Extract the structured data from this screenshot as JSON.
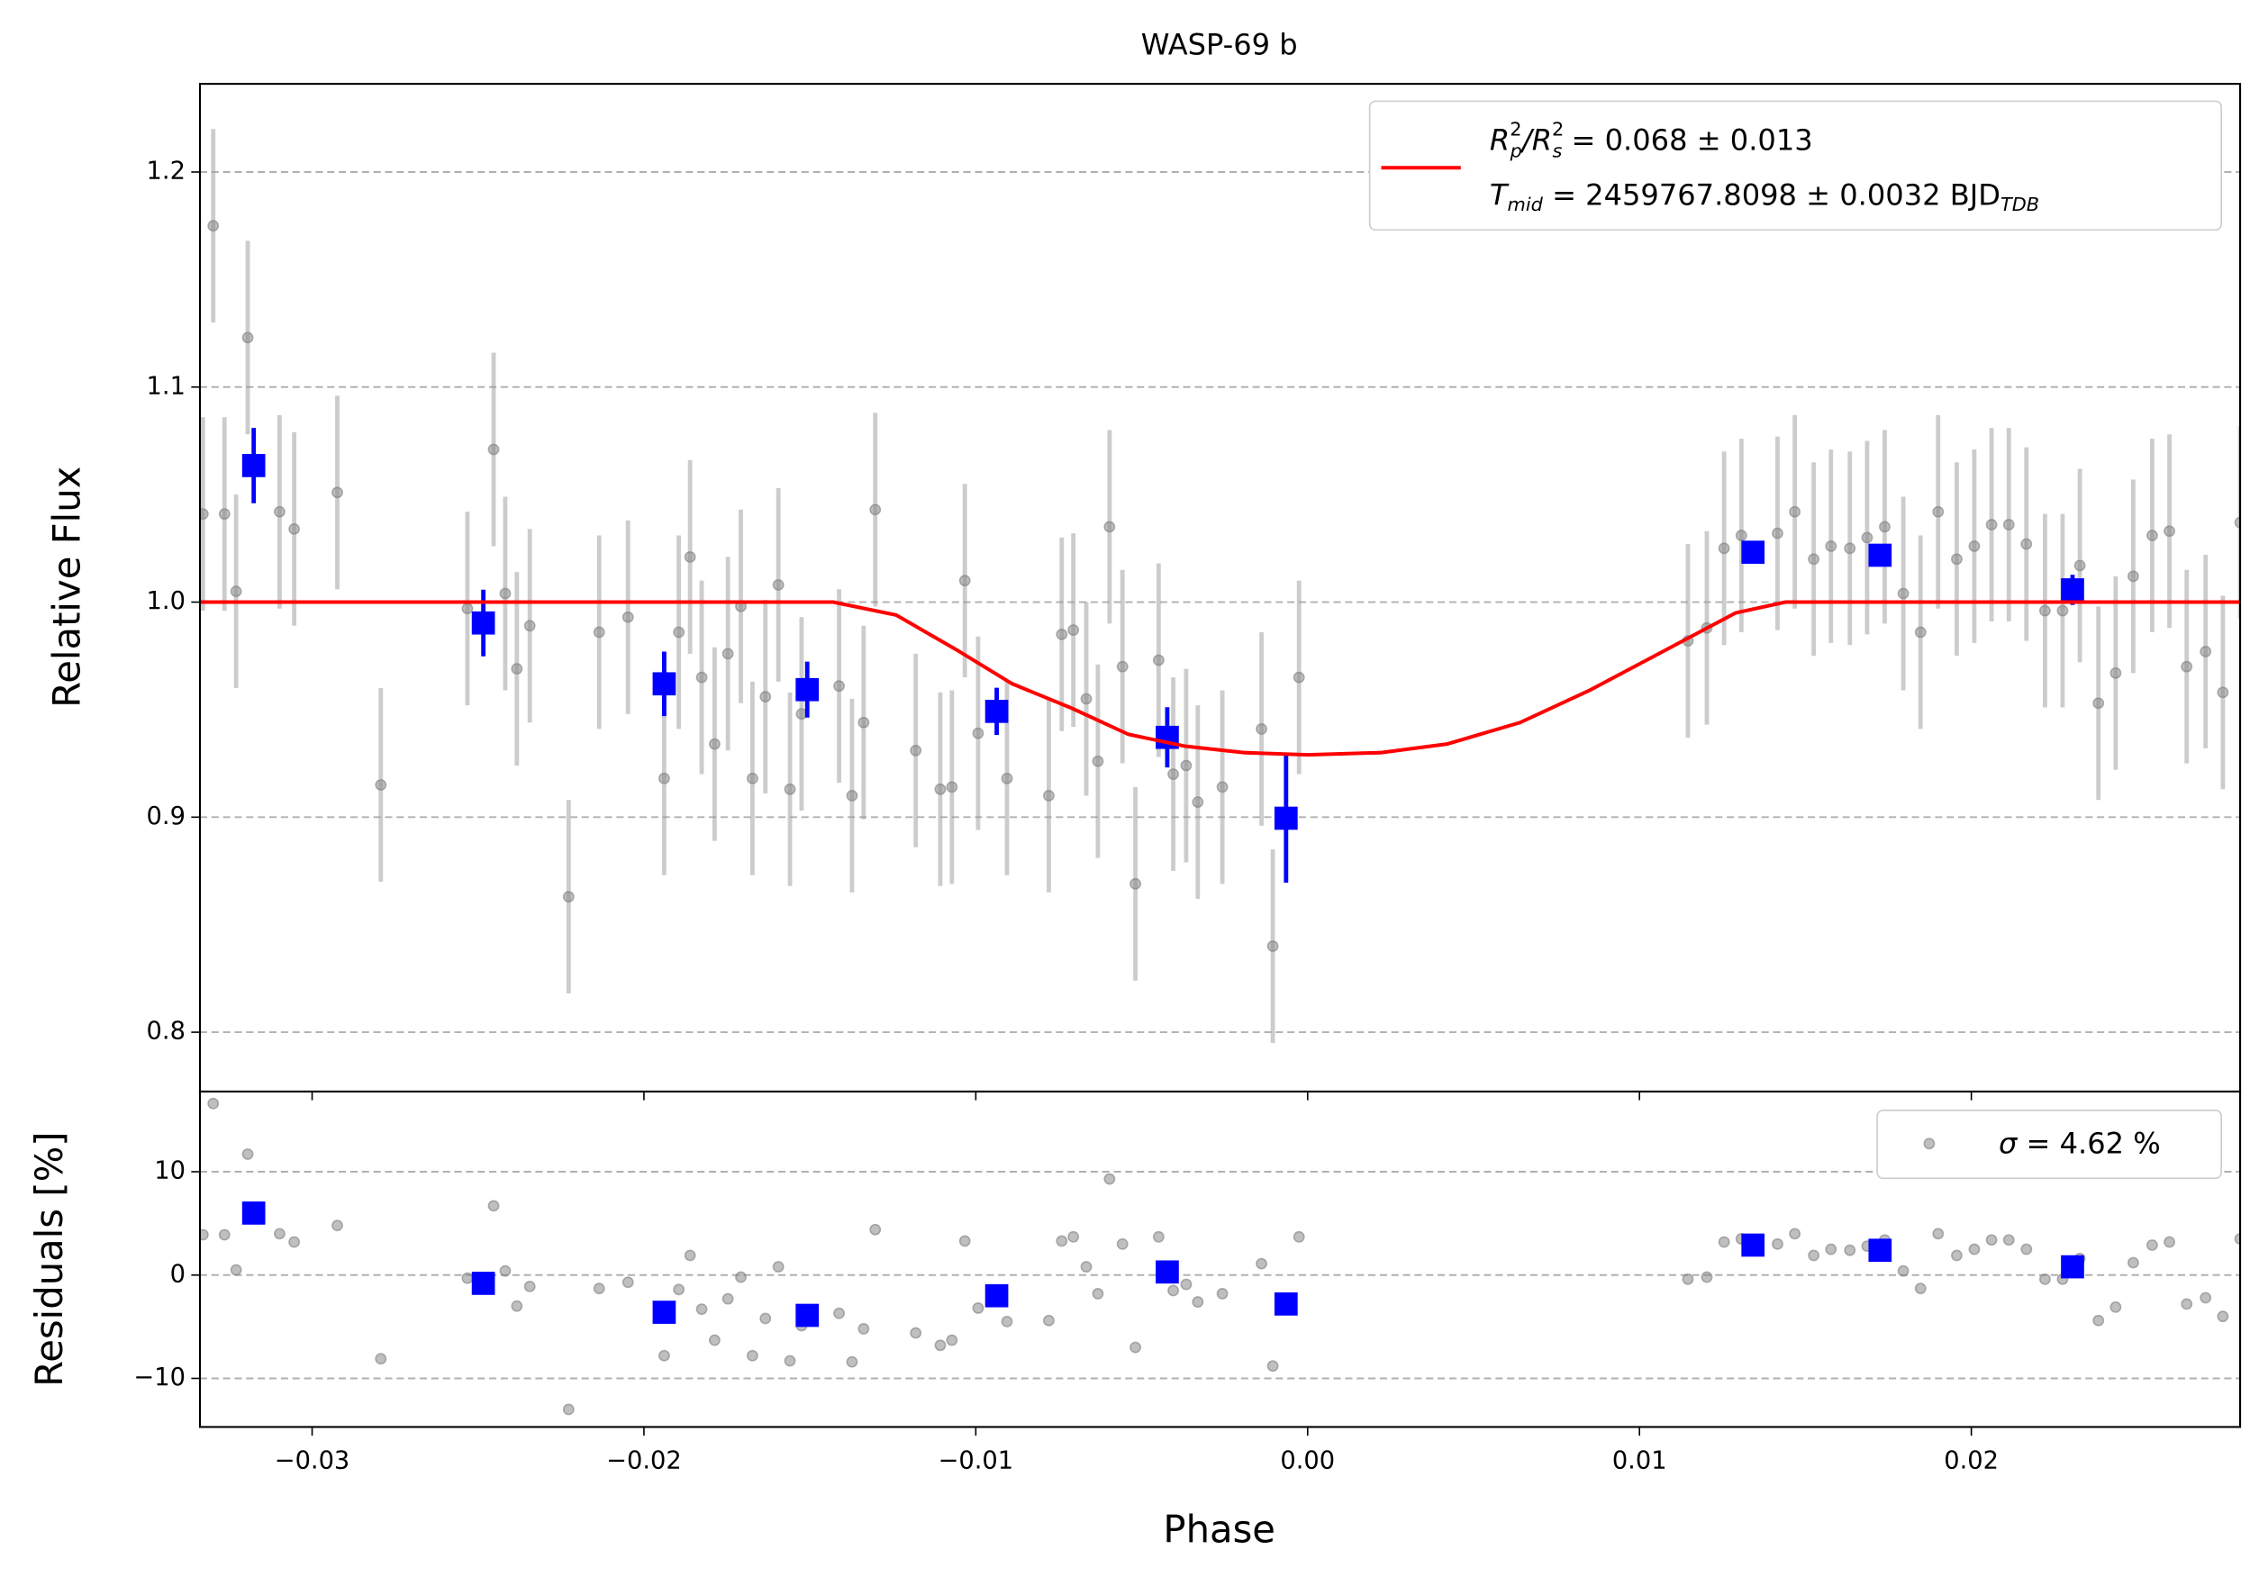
{
  "chart_data": [
    {
      "type": "scatter",
      "title": "WASP-69 b",
      "y_label": "Relative Flux",
      "xlim": [
        -0.03338,
        0.0281
      ],
      "ylim": [
        0.7724,
        1.241
      ],
      "yticks": [
        0.8,
        0.9,
        {
          "value": 1.0,
          "label": "1.0"
        },
        1.1,
        1.2
      ],
      "grid": true,
      "legend_loc": "upper right",
      "series": [
        {
          "kind": "errorbar",
          "color": "#808080",
          "x": [
            -0.03329,
            -0.03298,
            -0.03264,
            -0.03229,
            -0.03194,
            -0.03098,
            -0.03054,
            -0.02924,
            -0.02793,
            -0.02532,
            -0.02453,
            -0.02418,
            -0.02383,
            -0.02344,
            -0.02227,
            -0.02135,
            -0.02048,
            -0.01939,
            -0.01895,
            -0.01861,
            -0.01826,
            -0.01787,
            -0.01747,
            -0.01708,
            -0.01673,
            -0.01634,
            -0.01595,
            -0.0156,
            -0.01525,
            -0.01412,
            -0.01373,
            -0.01338,
            -0.01303,
            -0.01181,
            -0.01107,
            -0.01072,
            -0.01033,
            -0.00993,
            -0.00906,
            -0.0078,
            -0.00741,
            -0.00706,
            -0.00667,
            -0.00632,
            -0.00597,
            -0.00558,
            -0.00519,
            -0.00449,
            -0.00405,
            -0.00366,
            -0.00331,
            -0.00257,
            -0.00139,
            -0.00105,
            -0.00026,
            0.01146,
            0.01203,
            0.01255,
            0.01307,
            0.01416,
            0.01468,
            0.01525,
            0.01577,
            0.01634,
            0.01686,
            0.01739,
            0.01795,
            0.01847,
            0.019,
            0.01956,
            0.02009,
            0.02061,
            0.02113,
            0.02166,
            0.02222,
            0.02275,
            0.02327,
            0.02383,
            0.02435,
            0.02488,
            0.02545,
            0.02597,
            0.02649,
            0.02706,
            0.02758,
            0.0281
          ],
          "values": [
            1.041,
            1.175,
            1.041,
            1.005,
            1.123,
            1.042,
            1.034,
            1.051,
            0.915,
            0.997,
            1.071,
            1.004,
            0.969,
            0.989,
            0.863,
            0.986,
            0.993,
            0.918,
            0.986,
            1.021,
            0.965,
            0.934,
            0.976,
            0.998,
            0.918,
            0.956,
            1.008,
            0.913,
            0.948,
            0.961,
            0.91,
            0.944,
            1.043,
            0.931,
            0.913,
            0.914,
            1.01,
            0.939,
            0.918,
            0.91,
            0.985,
            0.987,
            0.955,
            0.926,
            1.035,
            0.97,
            0.869,
            0.973,
            0.92,
            0.924,
            0.907,
            0.914,
            0.941,
            0.84,
            0.965,
            0.982,
            0.988,
            1.025,
            1.031,
            1.032,
            1.042,
            1.02,
            1.026,
            1.025,
            1.03,
            1.035,
            1.004,
            0.986,
            1.042,
            1.02,
            1.026,
            1.036,
            1.036,
            1.027,
            0.996,
            0.996,
            1.017,
            0.953,
            0.967,
            1.012,
            1.031,
            1.033,
            0.97,
            0.977,
            0.958,
            1.037
          ],
          "errors": [
            0.045,
            0.045,
            0.045,
            0.045,
            0.045,
            0.045,
            0.045,
            0.045,
            0.045,
            0.045,
            0.045,
            0.045,
            0.045,
            0.045,
            0.045,
            0.045,
            0.045,
            0.045,
            0.045,
            0.045,
            0.045,
            0.045,
            0.045,
            0.045,
            0.045,
            0.045,
            0.045,
            0.045,
            0.045,
            0.045,
            0.045,
            0.045,
            0.045,
            0.045,
            0.045,
            0.045,
            0.045,
            0.045,
            0.045,
            0.045,
            0.045,
            0.045,
            0.045,
            0.045,
            0.045,
            0.045,
            0.045,
            0.045,
            0.045,
            0.045,
            0.045,
            0.045,
            0.045,
            0.045,
            0.045,
            0.045,
            0.045,
            0.045,
            0.045,
            0.045,
            0.045,
            0.045,
            0.045,
            0.045,
            0.045,
            0.045,
            0.045,
            0.045,
            0.045,
            0.045,
            0.045,
            0.045,
            0.045,
            0.045,
            0.045,
            0.045,
            0.045,
            0.045,
            0.045,
            0.045,
            0.045,
            0.045,
            0.045,
            0.045,
            0.045,
            0.045
          ]
        },
        {
          "kind": "binned",
          "color": "#0000ff",
          "x": [
            -0.03176,
            -0.02484,
            -0.01939,
            -0.01508,
            -0.00937,
            -0.00423,
            -0.00065,
            0.01342,
            0.01725,
            0.02305
          ],
          "values": [
            1.0635,
            0.9903,
            0.962,
            0.9593,
            0.9492,
            0.9371,
            0.8995,
            1.0232,
            1.0218,
            1.0057
          ],
          "errors": [
            0.0175,
            0.0155,
            0.015,
            0.013,
            0.011,
            0.014,
            0.03,
            0.005,
            0.005,
            0.007
          ]
        },
        {
          "kind": "line",
          "color": "#ff0000",
          "name": [
            "R",
            "2",
            "p",
            "/R",
            "2",
            "s",
            " = 0.068 ± 0.013"
          ],
          "name2": [
            "T",
            "mid",
            " = 2459767.8098 ± 0.0032 BJD",
            "TDB"
          ],
          "x": [
            -0.03338,
            -0.0143,
            -0.0124,
            -0.0106,
            -0.0089,
            -0.0071,
            -0.0054,
            -0.0037,
            -0.0019,
            0,
            0.0022,
            0.0042,
            0.0064,
            0.0085,
            0.0107,
            0.0129,
            0.0144,
            0.0281
          ],
          "values": [
            1,
            1,
            0.994,
            0.978,
            0.962,
            0.9506,
            0.9385,
            0.933,
            0.93,
            0.929,
            0.93,
            0.934,
            0.944,
            0.959,
            0.977,
            0.995,
            1,
            1
          ]
        }
      ]
    },
    {
      "type": "scatter",
      "x_label": "Phase",
      "y_label": "Residuals [%]",
      "xlim": [
        -0.03338,
        0.0281
      ],
      "ylim": [
        -14.7,
        17.76
      ],
      "xticks": [
        {
          "value": -0.03,
          "label": "−0.03"
        },
        {
          "value": -0.02,
          "label": "−0.02"
        },
        {
          "value": -0.01,
          "label": "−0.01"
        },
        {
          "value": 0,
          "label": "0.00"
        },
        0.01,
        0.02
      ],
      "yticks": [
        {
          "value": -10,
          "label": "−10"
        },
        0,
        10
      ],
      "grid": true,
      "legend_loc": "upper right",
      "series": [
        {
          "kind": "points",
          "color": "#808080",
          "name": [
            "σ",
            " = 4.62 %"
          ],
          "x": [
            -0.03329,
            -0.03298,
            -0.03264,
            -0.03229,
            -0.03194,
            -0.03098,
            -0.03054,
            -0.02924,
            -0.02793,
            -0.02532,
            -0.02453,
            -0.02418,
            -0.02383,
            -0.02344,
            -0.02227,
            -0.02135,
            -0.02048,
            -0.01939,
            -0.01895,
            -0.01861,
            -0.01826,
            -0.01787,
            -0.01747,
            -0.01708,
            -0.01673,
            -0.01634,
            -0.01595,
            -0.0156,
            -0.01525,
            -0.01412,
            -0.01373,
            -0.01338,
            -0.01303,
            -0.01181,
            -0.01107,
            -0.01072,
            -0.01033,
            -0.00993,
            -0.00906,
            -0.0078,
            -0.00741,
            -0.00706,
            -0.00667,
            -0.00632,
            -0.00597,
            -0.00558,
            -0.00519,
            -0.00449,
            -0.00405,
            -0.00366,
            -0.00331,
            -0.00257,
            -0.00139,
            -0.00105,
            -0.00026,
            0.01146,
            0.01203,
            0.01255,
            0.01307,
            0.01416,
            0.01468,
            0.01525,
            0.01577,
            0.01634,
            0.01686,
            0.01739,
            0.01795,
            0.01847,
            0.019,
            0.01956,
            0.02009,
            0.02061,
            0.02113,
            0.02166,
            0.02222,
            0.02275,
            0.02327,
            0.02383,
            0.02435,
            0.02488,
            0.02545,
            0.02597,
            0.02649,
            0.02706,
            0.02758,
            0.0281
          ],
          "values": [
            3.9,
            16.6,
            3.9,
            0.5,
            11.7,
            4.0,
            3.2,
            4.8,
            -8.1,
            -0.3,
            6.7,
            0.4,
            -3.0,
            -1.1,
            -13.0,
            -1.3,
            -0.7,
            -7.8,
            -1.4,
            1.9,
            -3.3,
            -6.3,
            -2.3,
            -0.2,
            -7.8,
            -4.2,
            0.8,
            -8.3,
            -4.9,
            -3.7,
            -8.4,
            -5.2,
            4.4,
            -5.6,
            -6.8,
            -6.3,
            3.3,
            -3.2,
            -4.5,
            -4.4,
            3.3,
            3.7,
            0.8,
            -1.8,
            9.3,
            3.0,
            -7.0,
            3.7,
            -1.5,
            -0.9,
            -2.6,
            -1.8,
            1.1,
            -8.8,
            3.7,
            -0.4,
            -0.2,
            3.2,
            3.5,
            3.0,
            4.0,
            1.9,
            2.5,
            2.4,
            2.8,
            3.4,
            0.4,
            -1.3,
            4.0,
            1.9,
            2.5,
            3.4,
            3.4,
            2.5,
            -0.4,
            -0.4,
            1.6,
            -4.4,
            -3.1,
            1.2,
            2.9,
            3.2,
            -2.8,
            -2.2,
            -4.0,
            3.5
          ]
        },
        {
          "kind": "binned",
          "color": "#0000ff",
          "x": [
            -0.03176,
            -0.02484,
            -0.01939,
            -0.01508,
            -0.00937,
            -0.00423,
            -0.00065,
            0.01342,
            0.01725,
            0.02305
          ],
          "values": [
            6.0,
            -0.8,
            -3.6,
            -3.9,
            -2.0,
            0.3,
            -2.8,
            2.9,
            2.4,
            0.8
          ]
        }
      ]
    }
  ]
}
